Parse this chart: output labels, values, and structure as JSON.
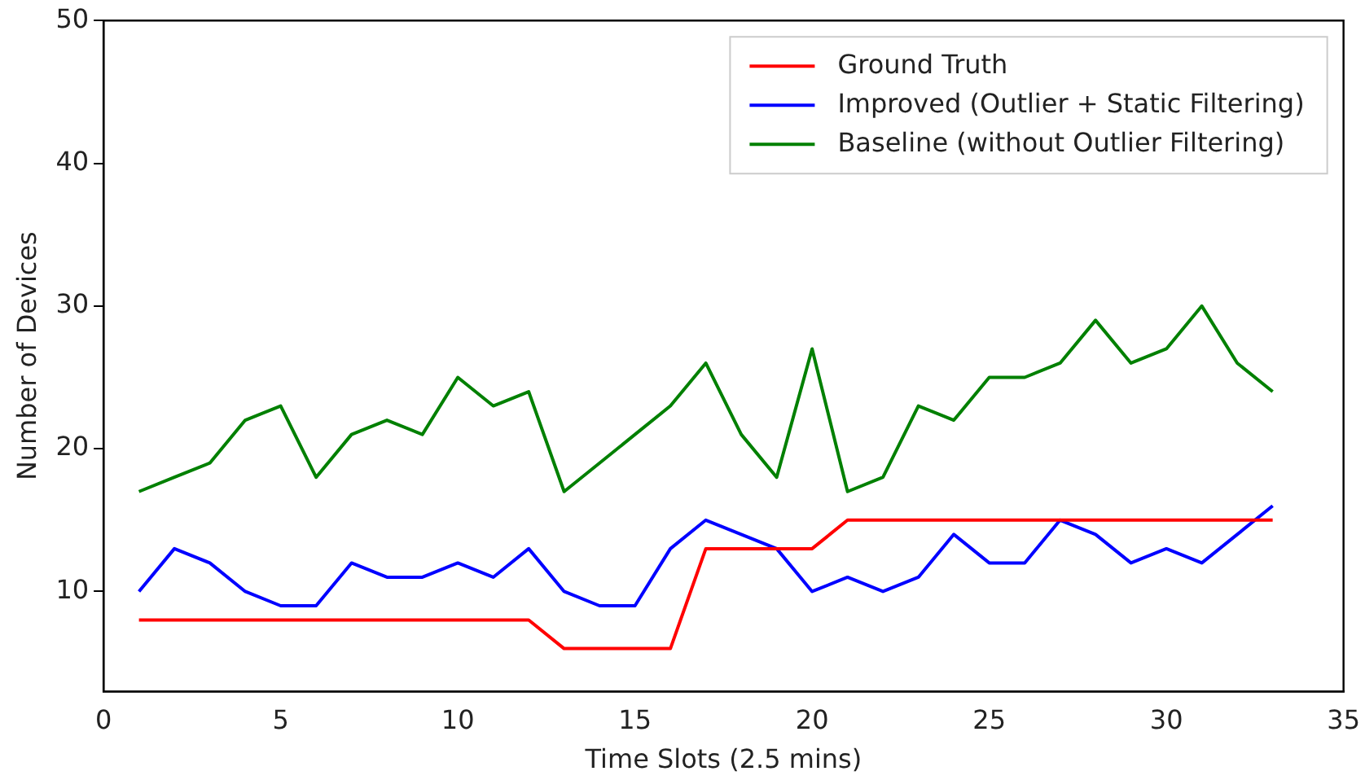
{
  "chart_data": {
    "type": "line",
    "xlabel": "Time Slots (2.5 mins)",
    "ylabel": "Number of Devices",
    "x": [
      1,
      2,
      3,
      4,
      5,
      6,
      7,
      8,
      9,
      10,
      11,
      12,
      13,
      14,
      15,
      16,
      17,
      18,
      19,
      20,
      21,
      22,
      23,
      24,
      25,
      26,
      27,
      28,
      29,
      30,
      31,
      32,
      33
    ],
    "series": [
      {
        "name": "Ground Truth",
        "color": "#ff0000",
        "values": [
          8,
          8,
          8,
          8,
          8,
          8,
          8,
          8,
          8,
          8,
          8,
          8,
          6,
          6,
          6,
          6,
          13,
          13,
          13,
          13,
          15,
          15,
          15,
          15,
          15,
          15,
          15,
          15,
          15,
          15,
          15,
          15,
          15
        ]
      },
      {
        "name": "Improved (Outlier + Static Filtering)",
        "color": "#0000ff",
        "values": [
          10,
          13,
          12,
          10,
          9,
          9,
          12,
          11,
          11,
          12,
          11,
          13,
          10,
          9,
          9,
          13,
          15,
          14,
          13,
          10,
          11,
          10,
          11,
          14,
          12,
          12,
          15,
          14,
          12,
          13,
          12,
          14,
          16
        ]
      },
      {
        "name": "Baseline (without Outlier Filtering)",
        "color": "#008000",
        "values": [
          17,
          18,
          19,
          22,
          23,
          18,
          21,
          22,
          21,
          25,
          23,
          24,
          17,
          19,
          21,
          23,
          26,
          21,
          18,
          27,
          17,
          18,
          23,
          22,
          25,
          25,
          26,
          29,
          26,
          27,
          30,
          26,
          24
        ]
      }
    ],
    "xlim": [
      0,
      35
    ],
    "xticks": [
      0,
      5,
      10,
      15,
      20,
      25,
      30,
      35
    ],
    "ylim": [
      3,
      50
    ],
    "yticks": [
      10,
      20,
      30,
      40,
      50
    ],
    "grid": false,
    "legend": "top right",
    "marker": "none",
    "line_style": "solid"
  }
}
